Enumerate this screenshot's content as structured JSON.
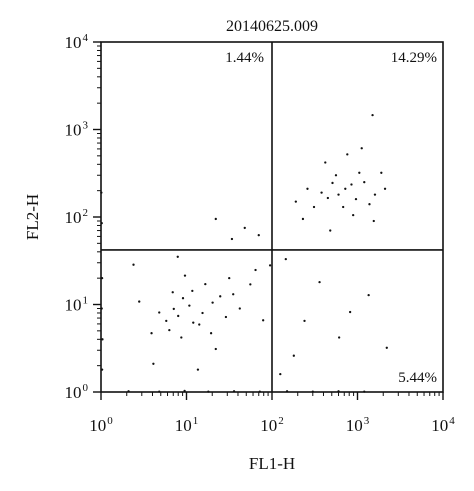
{
  "chart_data": {
    "type": "scatter",
    "title": "20140625.009",
    "xlabel": "FL1-H",
    "ylabel": "FL2-H",
    "x_scale": "log",
    "y_scale": "log",
    "xlim": [
      1,
      10000
    ],
    "ylim": [
      1,
      10000
    ],
    "x_ticks": [
      {
        "value": 1,
        "base": "10",
        "exponent": "0"
      },
      {
        "value": 10,
        "base": "10",
        "exponent": "1"
      },
      {
        "value": 100,
        "base": "10",
        "exponent": "2"
      },
      {
        "value": 1000,
        "base": "10",
        "exponent": "3"
      },
      {
        "value": 10000,
        "base": "10",
        "exponent": "4"
      }
    ],
    "y_ticks": [
      {
        "value": 1,
        "base": "10",
        "exponent": "0"
      },
      {
        "value": 10,
        "base": "10",
        "exponent": "1"
      },
      {
        "value": 100,
        "base": "10",
        "exponent": "2"
      },
      {
        "value": 1000,
        "base": "10",
        "exponent": "3"
      },
      {
        "value": 10000,
        "base": "10",
        "exponent": "4"
      }
    ],
    "grid": false,
    "legend": "none",
    "gates": {
      "x": 100,
      "y": 42
    },
    "quadrants": {
      "upper_left": "1.44%",
      "upper_right": "14.29%",
      "lower_right": "5.44%"
    },
    "series": [
      {
        "name": "",
        "points": [
          [
            8.0,
            7.4
          ],
          [
            7.1,
            8.9
          ],
          [
            10.8,
            9.7
          ],
          [
            12.0,
            6.2
          ],
          [
            5.8,
            6.5
          ],
          [
            15.4,
            8.0
          ],
          [
            9.1,
            11.8
          ],
          [
            20.2,
            10.5
          ],
          [
            6.3,
            5.1
          ],
          [
            4.8,
            8.1
          ],
          [
            14.1,
            5.9
          ],
          [
            11.7,
            14.3
          ],
          [
            24.8,
            12.4
          ],
          [
            16.6,
            17.1
          ],
          [
            8.7,
            4.2
          ],
          [
            3.9,
            4.7
          ],
          [
            28.9,
            7.2
          ],
          [
            19.4,
            4.7
          ],
          [
            35.2,
            13.1
          ],
          [
            6.9,
            13.8
          ],
          [
            2.8,
            10.8
          ],
          [
            42.0,
            9.0
          ],
          [
            9.6,
            21.4
          ],
          [
            31.6,
            20.0
          ],
          [
            55.8,
            17.0
          ],
          [
            4.1,
            2.1
          ],
          [
            22.0,
            3.1
          ],
          [
            64.2,
            24.8
          ],
          [
            78.8,
            6.6
          ],
          [
            13.6,
            1.8
          ],
          [
            2.4,
            28.5
          ],
          [
            7.9,
            35.1
          ],
          [
            600,
            180
          ],
          [
            720,
            210
          ],
          [
            450,
            165
          ],
          [
            850,
            235
          ],
          [
            510,
            245
          ],
          [
            380,
            190
          ],
          [
            960,
            160
          ],
          [
            680,
            130
          ],
          [
            1200,
            250
          ],
          [
            310,
            130
          ],
          [
            1050,
            320
          ],
          [
            260,
            210
          ],
          [
            1600,
            180
          ],
          [
            1380,
            140
          ],
          [
            230,
            95
          ],
          [
            890,
            105
          ],
          [
            560,
            300
          ],
          [
            2100,
            210
          ],
          [
            480,
            70
          ],
          [
            1550,
            90
          ],
          [
            1900,
            320
          ],
          [
            420,
            420
          ],
          [
            760,
            520
          ],
          [
            190,
            150
          ],
          [
            1120,
            610
          ],
          [
            1500,
            1460
          ],
          [
            610,
            4.2
          ],
          [
            820,
            8.2
          ],
          [
            240,
            6.5
          ],
          [
            1350,
            12.8
          ],
          [
            180,
            2.6
          ],
          [
            360,
            18.0
          ],
          [
            2200,
            3.2
          ],
          [
            125,
            1.6
          ],
          [
            95,
            28.0
          ],
          [
            70,
            62.0
          ],
          [
            48,
            75.0
          ],
          [
            34,
            56.0
          ],
          [
            22,
            95.0
          ],
          [
            145,
            33.0
          ],
          [
            2.1,
            1.02
          ],
          [
            4.8,
            1.01
          ],
          [
            9.5,
            1.03
          ],
          [
            18.0,
            1.01
          ],
          [
            36.0,
            1.02
          ],
          [
            72.0,
            1.01
          ],
          [
            150.0,
            1.02
          ],
          [
            300.0,
            1.01
          ],
          [
            600.0,
            1.02
          ],
          [
            1200.0,
            1.01
          ],
          [
            1.03,
            1.8
          ],
          [
            1.04,
            4.0
          ],
          [
            1.02,
            9.0
          ],
          [
            1.03,
            20.0
          ],
          [
            1.02,
            85.0
          ],
          [
            1.01,
            190.0
          ]
        ]
      }
    ]
  }
}
